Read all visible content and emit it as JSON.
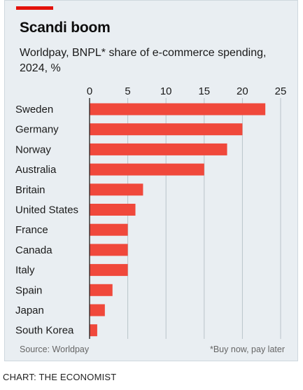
{
  "colors": {
    "accent": "#e3120b",
    "bar": "#f0483b",
    "panel_background": "#e9eef2",
    "gridline": "#b9c3c9"
  },
  "chart_data": {
    "type": "bar",
    "orientation": "horizontal",
    "title": "Scandi boom",
    "subtitle": "Worldpay, BNPL* share of e-commerce spending, 2024, %",
    "categories": [
      "Sweden",
      "Germany",
      "Norway",
      "Australia",
      "Britain",
      "United States",
      "France",
      "Canada",
      "Italy",
      "Spain",
      "Japan",
      "South Korea"
    ],
    "values": [
      23,
      20,
      18,
      15,
      7,
      6,
      5,
      5,
      5,
      3,
      2,
      1
    ],
    "xlim": [
      0,
      25
    ],
    "xticks": [
      "0",
      "5",
      "10",
      "15",
      "20",
      "25"
    ],
    "xtick_values": [
      0,
      5,
      10,
      15,
      20,
      25
    ],
    "x_axis_position": "top",
    "grid": true,
    "source": "Source: Worldpay",
    "footnote": "*Buy now, pay later"
  },
  "credit": "CHART: THE ECONOMIST"
}
